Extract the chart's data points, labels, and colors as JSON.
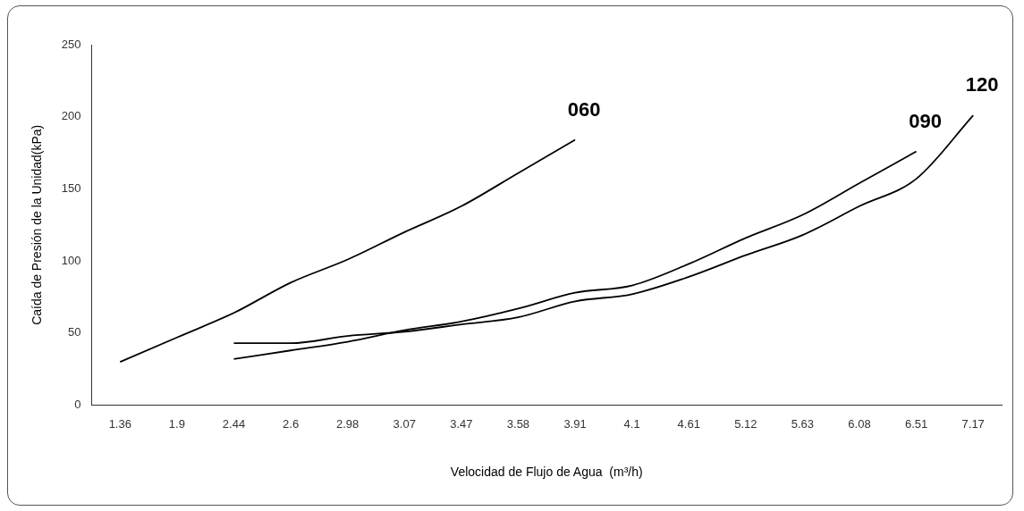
{
  "chart_data": {
    "type": "line",
    "xlabel": "Velocidad de Flujo de Agua  (m³/h)",
    "ylabel": "Caída de Presión de la Unidad(kPa)",
    "categories": [
      "1.36",
      "1.9",
      "2.44",
      "2.6",
      "2.98",
      "3.07",
      "3.47",
      "3.58",
      "3.91",
      "4.1",
      "4.61",
      "5.12",
      "5.63",
      "6.08",
      "6.51",
      "7.17"
    ],
    "series": [
      {
        "name": "060",
        "color": "#000000",
        "values": [
          30,
          47,
          64,
          85,
          101,
          120,
          138,
          161,
          184,
          null,
          null,
          null,
          null,
          null,
          null,
          null
        ]
      },
      {
        "name": "090",
        "color": "#000000",
        "values": [
          null,
          null,
          32,
          38,
          44,
          52,
          58,
          67,
          78,
          83,
          98,
          116,
          132,
          154,
          176,
          null
        ]
      },
      {
        "name": "120",
        "color": "#000000",
        "values": [
          null,
          null,
          43,
          43,
          48,
          51,
          56,
          61,
          72,
          77,
          89,
          104,
          118,
          138,
          157,
          201
        ]
      }
    ],
    "ylim": [
      0,
      250
    ],
    "yticks": [
      0,
      50,
      100,
      150,
      200,
      250
    ],
    "grid": false,
    "legend": false,
    "marker": "none",
    "line_style": "solid"
  }
}
